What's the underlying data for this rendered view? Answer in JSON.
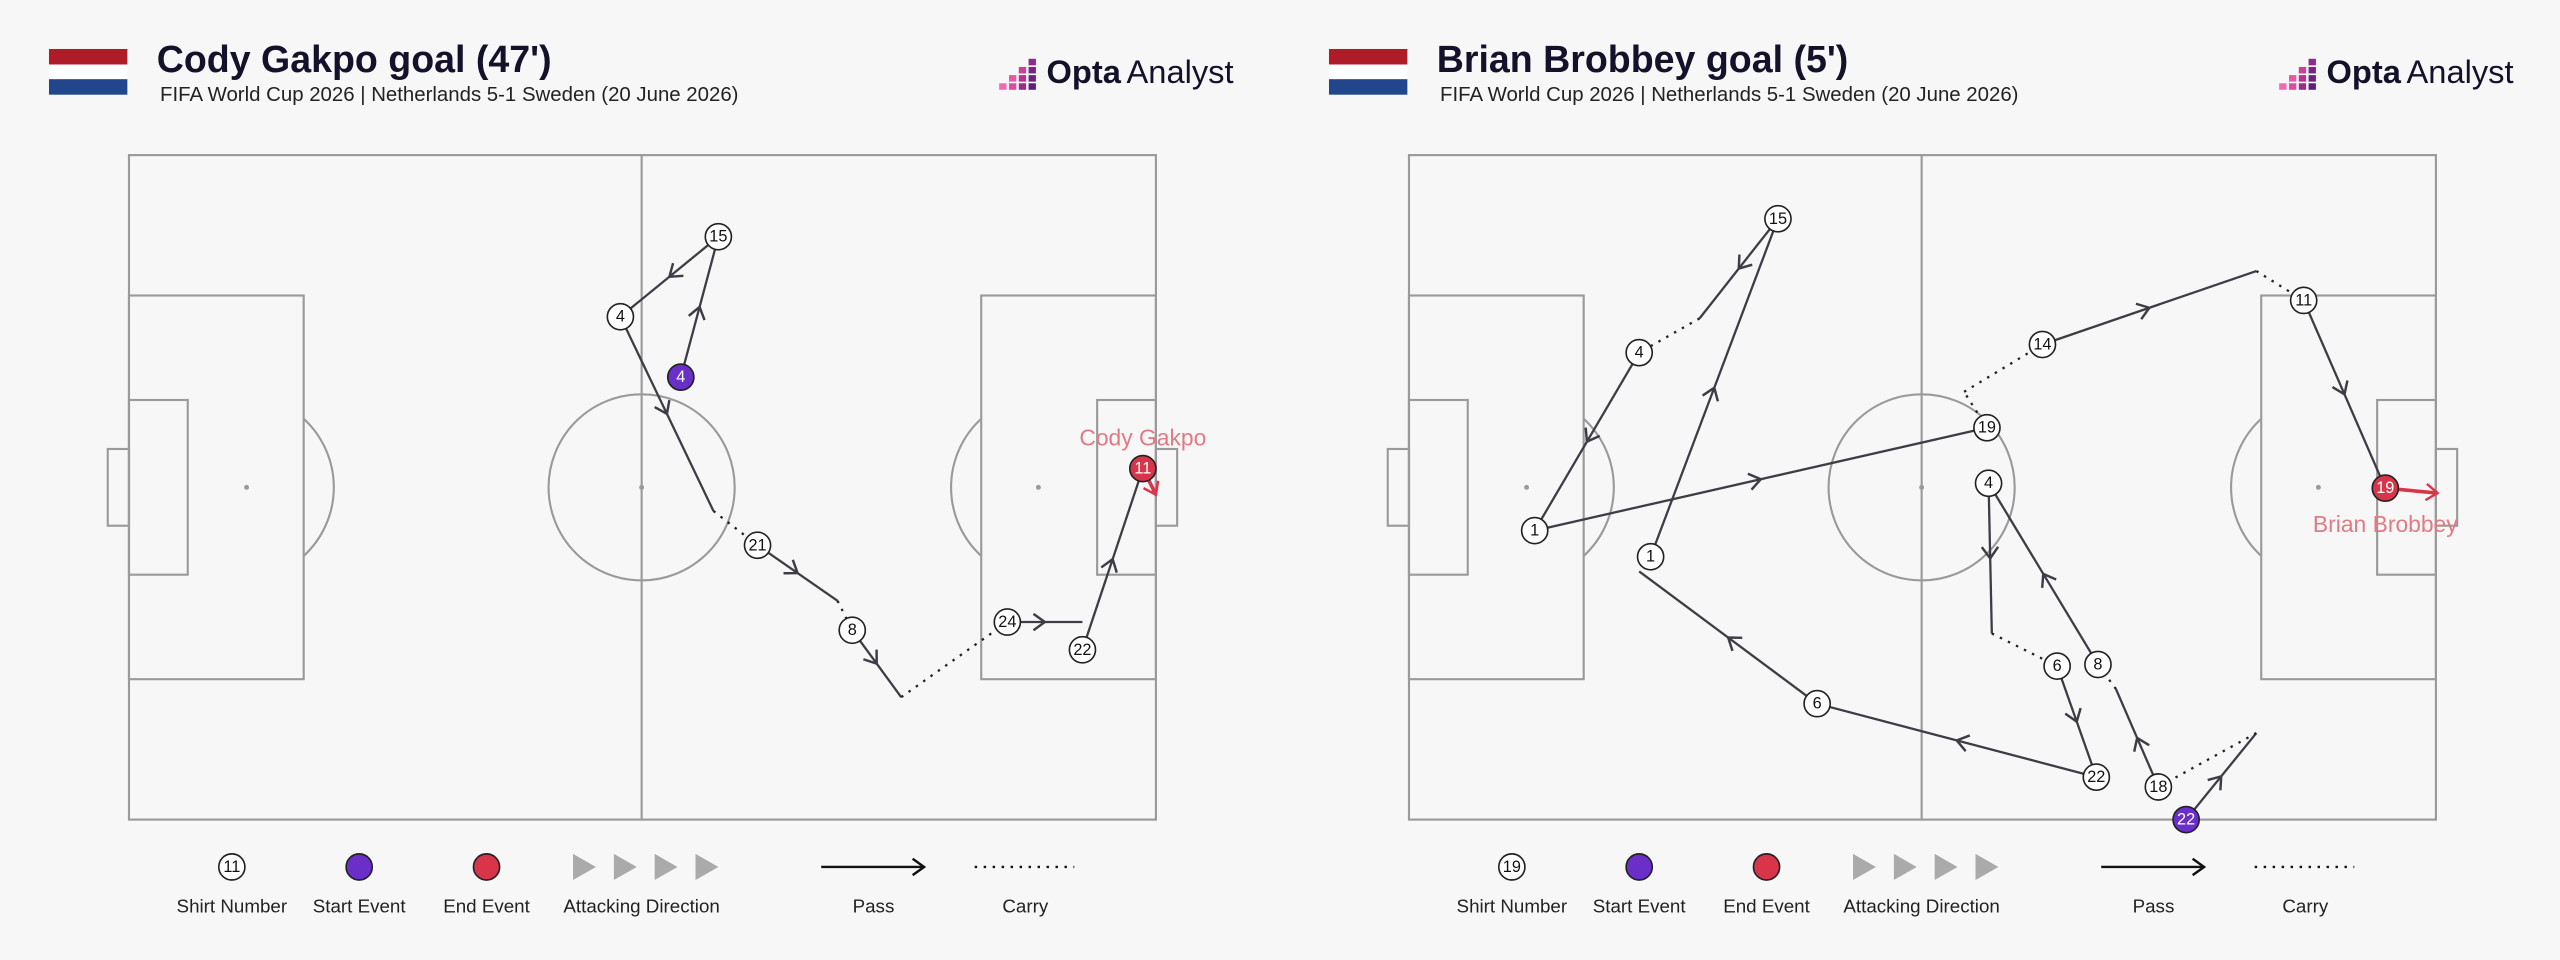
{
  "panels": [
    {
      "title": "Cody Gakpo goal (47')",
      "subtitle": "FIFA World Cup 2026 | Netherlands 5-1 Sweden (20 June 2026)",
      "logo": {
        "brand": "Opta",
        "product": "Analyst"
      },
      "scorer": "Cody Gakpo",
      "nodes": [
        {
          "label": "4"
        },
        {
          "label": "15"
        },
        {
          "label": "4"
        },
        {
          "label": "21"
        },
        {
          "label": "8"
        },
        {
          "label": "24"
        },
        {
          "label": "22"
        },
        {
          "label": "11"
        }
      ],
      "legend": {
        "shirt_number": "11",
        "shirt_text": "Shirt Number",
        "start_text": "Start Event",
        "end_text": "End Event",
        "direction_text": "Attacking Direction",
        "pass_text": "Pass",
        "carry_text": "Carry"
      }
    },
    {
      "title": "Brian Brobbey goal (5')",
      "subtitle": "FIFA World Cup 2026 | Netherlands 5-1 Sweden (20 June 2026)",
      "logo": {
        "brand": "Opta",
        "product": "Analyst"
      },
      "scorer": "Brian Brobbey",
      "nodes": [
        {
          "label": "22"
        },
        {
          "label": "18"
        },
        {
          "label": "8"
        },
        {
          "label": "4"
        },
        {
          "label": "6"
        },
        {
          "label": "22"
        },
        {
          "label": "6"
        },
        {
          "label": "1"
        },
        {
          "label": "15"
        },
        {
          "label": "4"
        },
        {
          "label": "1"
        },
        {
          "label": "19"
        },
        {
          "label": "14"
        },
        {
          "label": "11"
        },
        {
          "label": "19"
        }
      ],
      "legend": {
        "shirt_number": "19",
        "shirt_text": "Shirt Number",
        "start_text": "Start Event",
        "end_text": "End Event",
        "direction_text": "Attacking Direction",
        "pass_text": "Pass",
        "carry_text": "Carry"
      }
    }
  ]
}
